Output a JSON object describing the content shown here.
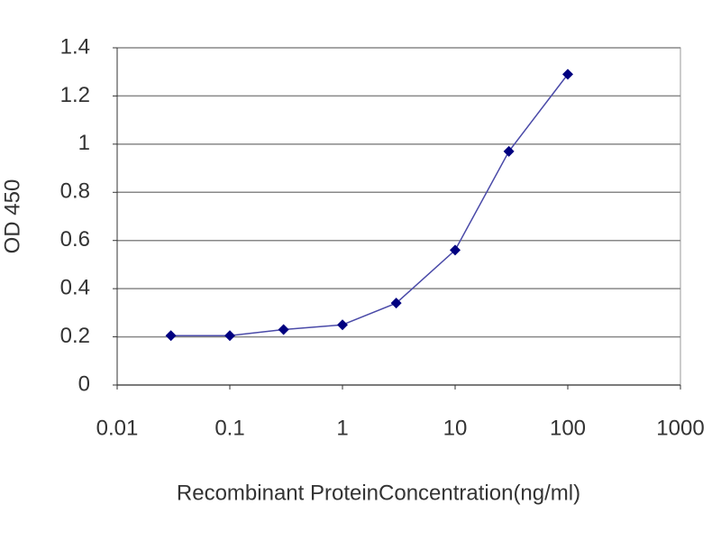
{
  "chart_data": {
    "type": "line",
    "x_label": "Recombinant ProteinConcentration(ng/ml)",
    "y_label": "OD 450",
    "x": [
      0.03,
      0.1,
      0.3,
      1,
      3,
      10,
      30,
      100
    ],
    "series": [
      {
        "color": "#000080",
        "values": [
          0.205,
          0.205,
          0.23,
          0.25,
          0.34,
          0.56,
          0.97,
          1.29
        ]
      }
    ],
    "xscale": "log",
    "xlim": [
      0.01,
      1000
    ],
    "xticks": [
      0.01,
      0.1,
      1,
      10,
      100,
      1000
    ],
    "ylim": [
      0,
      1.4
    ],
    "yticks": [
      0,
      0.2,
      0.4,
      0.6,
      0.8,
      1,
      1.2,
      1.4
    ],
    "grid": true
  }
}
